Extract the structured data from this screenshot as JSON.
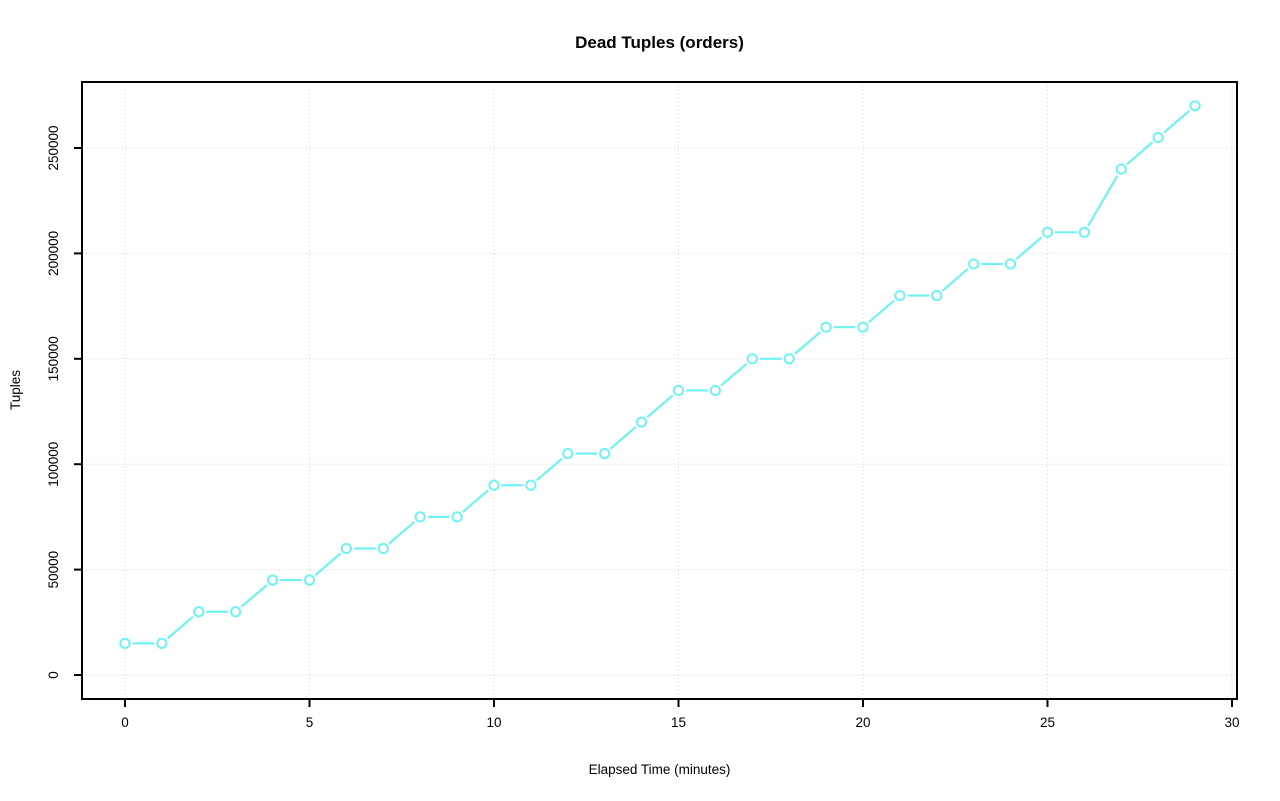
{
  "chart_data": {
    "type": "line",
    "title": "Dead Tuples (orders)",
    "xlabel": "Elapsed Time (minutes)",
    "ylabel": "Tuples",
    "x": [
      0,
      1,
      2,
      3,
      4,
      5,
      6,
      7,
      8,
      9,
      10,
      11,
      12,
      13,
      14,
      15,
      16,
      17,
      18,
      19,
      20,
      21,
      22,
      23,
      24,
      25,
      26,
      27,
      28,
      29
    ],
    "y": [
      15000,
      15000,
      30000,
      30000,
      45000,
      45000,
      60000,
      60000,
      75000,
      75000,
      90000,
      90000,
      105000,
      105000,
      120000,
      135000,
      135000,
      150000,
      150000,
      165000,
      165000,
      180000,
      180000,
      195000,
      195000,
      210000,
      210000,
      240000,
      255000,
      270000
    ],
    "x_ticks": [
      0,
      5,
      10,
      15,
      20,
      25,
      30
    ],
    "x_tick_labels": [
      "0",
      "5",
      "10",
      "15",
      "20",
      "25",
      "30"
    ],
    "y_ticks": [
      0,
      50000,
      100000,
      150000,
      200000,
      250000
    ],
    "y_tick_labels": [
      "0",
      "50000",
      "100000",
      "150000",
      "200000",
      "250000"
    ],
    "xlim": [
      -1.165,
      30.135
    ],
    "ylim": [
      -11385,
      281310
    ],
    "grid": "dotted",
    "legend": "none",
    "marker": "open-circle",
    "colors": {
      "series": "#70F2F2",
      "grid": "#D2D2D2",
      "axis": "#000000",
      "background": "#FFFFFF",
      "marker_fill": "#FFFFFF"
    }
  }
}
